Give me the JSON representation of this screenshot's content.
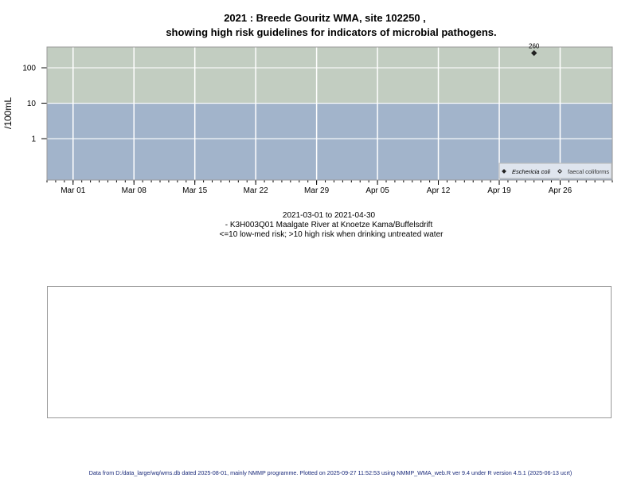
{
  "chart_data": {
    "type": "scatter",
    "title_line1": "2021 : Breede Gouritz WMA, site 102250 ,",
    "title_line2": "showing high risk guidelines for indicators of microbial pathogens.",
    "ylabel": "/100mL",
    "y_scale": "log",
    "ylim": [
      0.068,
      385
    ],
    "y_ticks": [
      {
        "value": 1,
        "label": "1"
      },
      {
        "value": 10,
        "label": "10"
      },
      {
        "value": 100,
        "label": "100"
      }
    ],
    "xlim": [
      "2021-02-26",
      "2021-05-02"
    ],
    "x_ticks": [
      {
        "date": "2021-03-01",
        "label": "Mar 01"
      },
      {
        "date": "2021-03-08",
        "label": "Mar 08"
      },
      {
        "date": "2021-03-15",
        "label": "Mar 15"
      },
      {
        "date": "2021-03-22",
        "label": "Mar 22"
      },
      {
        "date": "2021-03-29",
        "label": "Mar 29"
      },
      {
        "date": "2021-04-05",
        "label": "Apr 05"
      },
      {
        "date": "2021-04-12",
        "label": "Apr 12"
      },
      {
        "date": "2021-04-19",
        "label": "Apr 19"
      },
      {
        "date": "2021-04-26",
        "label": "Apr 26"
      }
    ],
    "grid": true,
    "risk_bands": [
      {
        "from": 10,
        "to": 385,
        "label": "high risk",
        "color": "#c2cdc1"
      },
      {
        "from": 0.068,
        "to": 10,
        "label": "low-med risk",
        "color": "#a2b4cb"
      }
    ],
    "series": [
      {
        "name": "Eschericia coli",
        "marker": "filled-diamond",
        "color": "#222222",
        "points": [
          {
            "x": "2021-04-23",
            "y": 260,
            "label": "260"
          }
        ]
      },
      {
        "name": "faecal coliforms",
        "marker": "open-diamond",
        "color": "#222222",
        "points": []
      }
    ],
    "legend_position": "bottom-right",
    "subtitle_lines": [
      "2021-03-01 to 2021-04-30",
      "- K3H003Q01 Maalgate River at Knoetze Kama/Buffelsdrift",
      "<=10 low-med risk; >10 high risk when drinking untreated water"
    ]
  },
  "footer": "Data from D:/data_large/wq/wms.db dated 2025-08-01, mainly NMMP programme. Plotted on 2025-09-27 11:52:53 using NMMP_WMA_web.R ver 9.4 under R version 4.5.1 (2025-06-13 ucrt)"
}
